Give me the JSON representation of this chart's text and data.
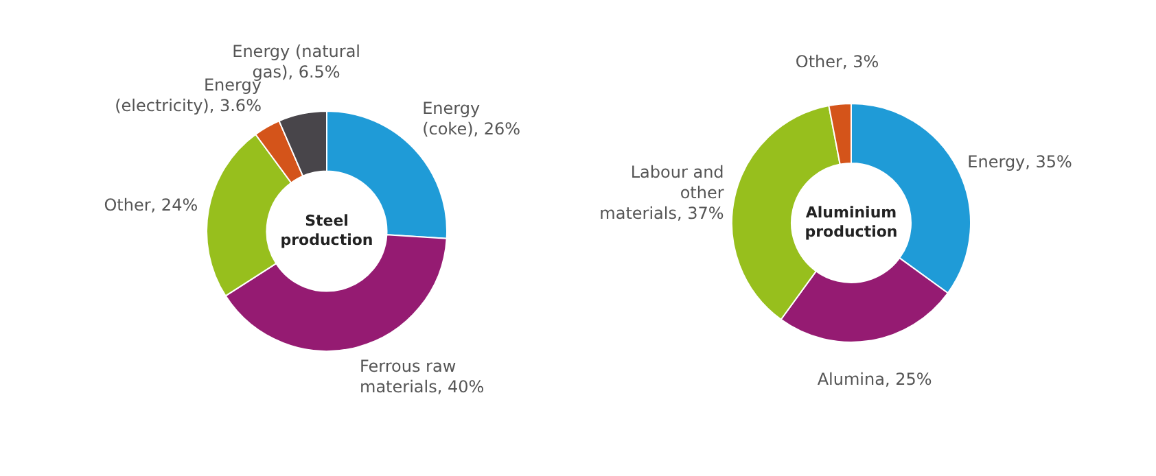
{
  "chart_data": [
    {
      "type": "donut",
      "title": "Steel production",
      "categories": [
        "Energy (coke)",
        "Ferrous raw materials",
        "Other",
        "Energy (electricity)",
        "Energy (natural gas)"
      ],
      "values": [
        26,
        40,
        24,
        3.6,
        6.5
      ],
      "value_labels": [
        "26%",
        "40%",
        "24%",
        "3.6%",
        "6.5%"
      ],
      "colors": [
        "#1f9bd7",
        "#951b72",
        "#97bf1d",
        "#d4541a",
        "#48454a"
      ],
      "legend": false
    },
    {
      "type": "donut",
      "title": "Aluminium production",
      "categories": [
        "Energy",
        "Alumina",
        "Labour and other materials",
        "Other"
      ],
      "values": [
        35,
        25,
        37,
        3
      ],
      "value_labels": [
        "35%",
        "25%",
        "37%",
        "3%"
      ],
      "colors": [
        "#1f9bd7",
        "#951b72",
        "#97bf1d",
        "#d4541a"
      ],
      "legend": false
    }
  ]
}
